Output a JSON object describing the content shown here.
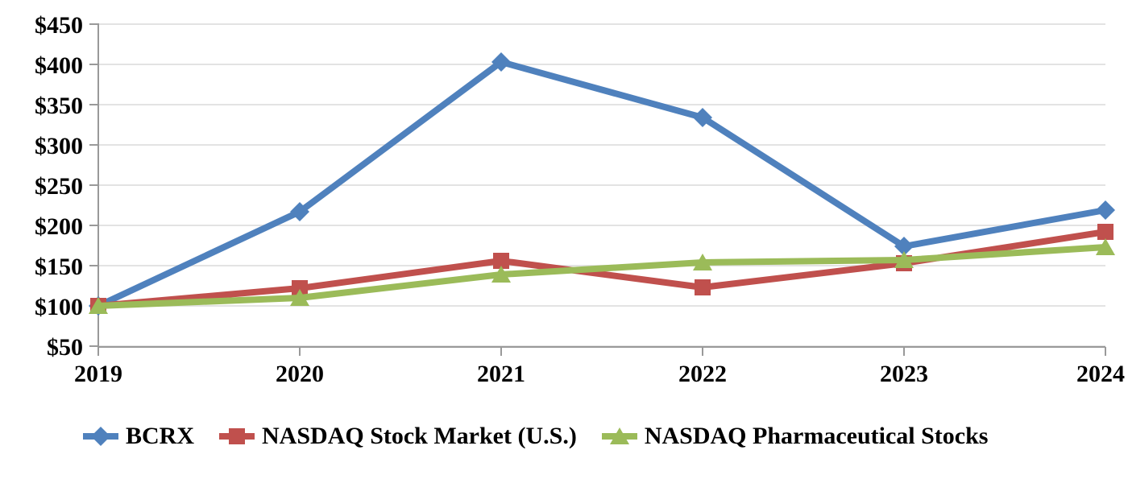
{
  "page": {
    "background_color": "#FFFFFF",
    "text_color": "#000000"
  },
  "chart_data": {
    "type": "line",
    "title": "",
    "xlabel": "",
    "ylabel": "",
    "x": [
      "2019",
      "2020",
      "2021",
      "2022",
      "2023",
      "2024"
    ],
    "ylim": [
      50,
      450
    ],
    "yticks": [
      50,
      100,
      150,
      200,
      250,
      300,
      350,
      400,
      450
    ],
    "ytick_labels": [
      "$50",
      "$100",
      "$150",
      "$200",
      "$250",
      "$300",
      "$350",
      "$400",
      "$450"
    ],
    "grid": true,
    "legend_position": "bottom",
    "colors": {
      "gridline": "#E3E3E3",
      "axis": "#999999",
      "label_text": "#000000"
    },
    "series": [
      {
        "name": "BCRX",
        "marker": "diamond",
        "color": "#4F81BD",
        "values": [
          100,
          217,
          403,
          334,
          174,
          219
        ]
      },
      {
        "name": "NASDAQ Stock Market (U.S.)",
        "marker": "square",
        "color": "#C0504D",
        "values": [
          100,
          122,
          156,
          123,
          153,
          192
        ]
      },
      {
        "name": "NASDAQ Pharmaceutical Stocks",
        "marker": "triangle",
        "color": "#9BBB59",
        "values": [
          100,
          110,
          139,
          154,
          157,
          173
        ]
      }
    ]
  }
}
